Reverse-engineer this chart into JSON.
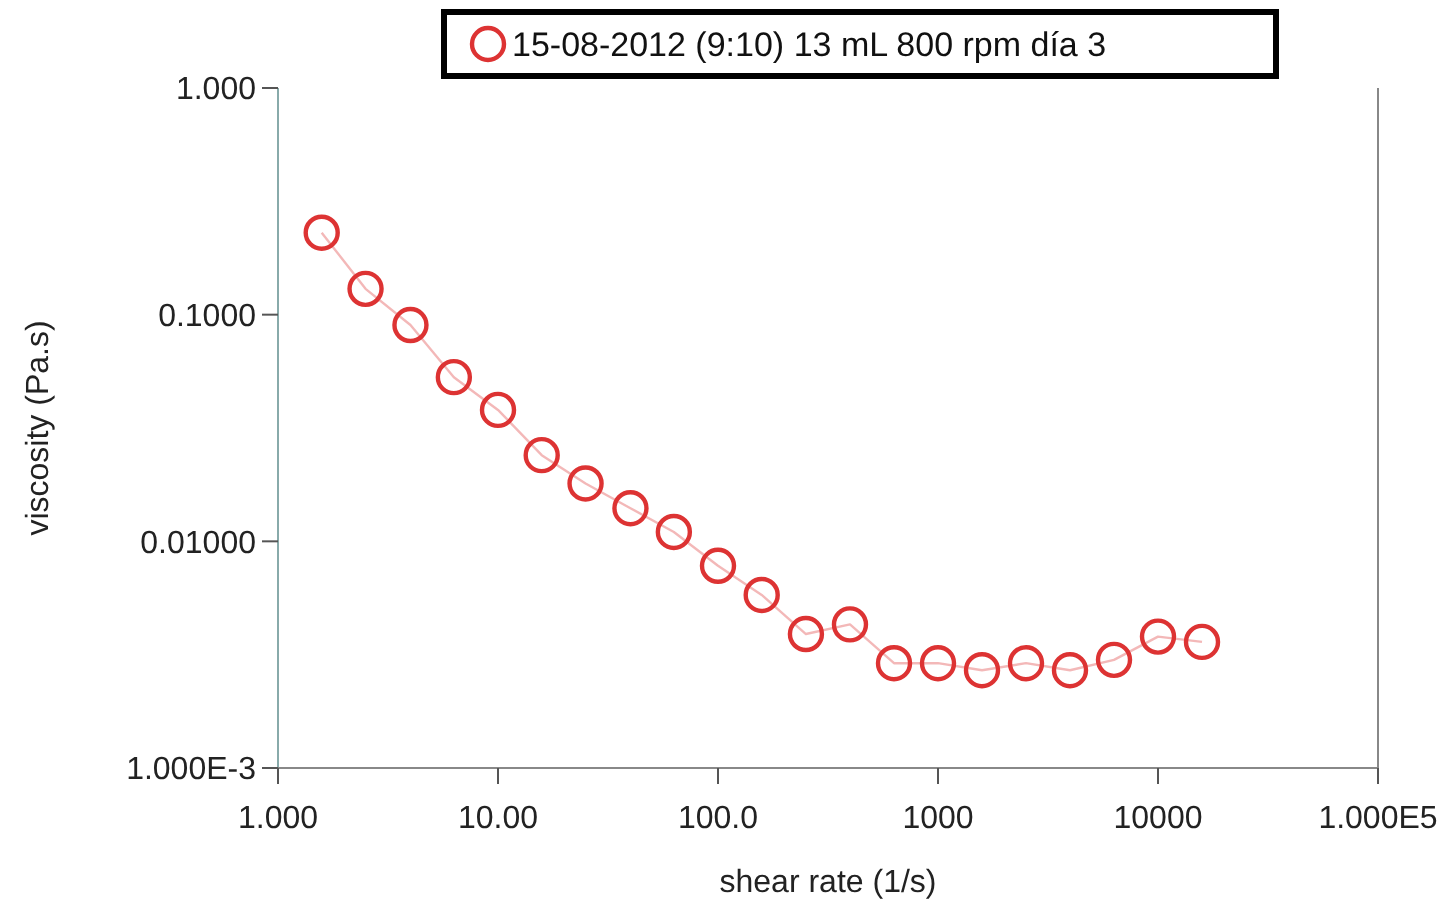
{
  "chart_data": {
    "type": "line",
    "xlabel": "shear rate (1/s)",
    "ylabel": "viscosity (Pa.s)",
    "log": "xy",
    "xlim": [
      1,
      100000
    ],
    "ylim": [
      0.001,
      1
    ],
    "xticks": [
      {
        "value": 1,
        "label": "1.000"
      },
      {
        "value": 10,
        "label": "10.00"
      },
      {
        "value": 100,
        "label": "100.0"
      },
      {
        "value": 1000,
        "label": "1000"
      },
      {
        "value": 10000,
        "label": "10000"
      },
      {
        "value": 100000,
        "label": "1.000E5"
      }
    ],
    "yticks": [
      {
        "value": 0.001,
        "label": "1.000E-3"
      },
      {
        "value": 0.01,
        "label": "0.01000"
      },
      {
        "value": 0.1,
        "label": "0.1000"
      },
      {
        "value": 1,
        "label": "1.000"
      }
    ],
    "x": [
      1.58,
      2.5,
      4,
      6.3,
      10,
      15.8,
      25,
      40,
      63,
      100,
      158,
      251,
      398,
      631,
      1000,
      1585,
      2512,
      3981,
      6310,
      10000,
      15850
    ],
    "series": [
      {
        "name": "15-08-2012 (9:10) 13 mL 800 rpm día 3",
        "color": "#dd3333",
        "values": [
          0.23,
          0.13,
          0.09,
          0.053,
          0.038,
          0.024,
          0.018,
          0.014,
          0.011,
          0.0078,
          0.0058,
          0.0039,
          0.0043,
          0.0029,
          0.0029,
          0.0027,
          0.0029,
          0.0027,
          0.003,
          0.0038,
          0.0036
        ]
      }
    ],
    "marker": "circle",
    "line_style": "solid",
    "legend": "top",
    "grid": false
  }
}
